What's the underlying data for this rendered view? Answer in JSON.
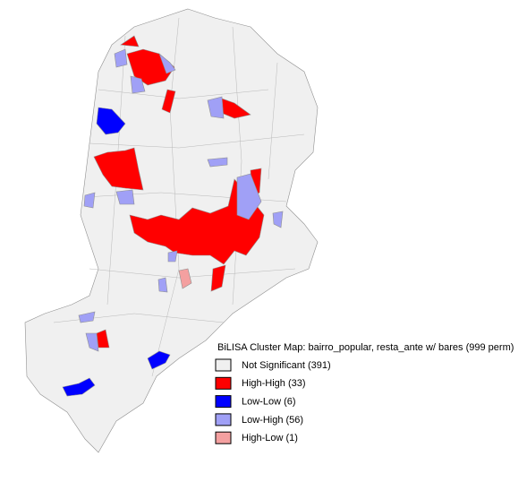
{
  "legend": {
    "title": "BiLISA Cluster Map: bairro_popular, resta_ante w/ bares (999 perm)",
    "items": [
      {
        "label": "Not Significant (391)",
        "color": "#f0f0f0"
      },
      {
        "label": "High-High (33)",
        "color": "#ff0000"
      },
      {
        "label": "Low-Low (6)",
        "color": "#0000ff"
      },
      {
        "label": "Low-High (56)",
        "color": "#a0a0f6"
      },
      {
        "label": "High-Low (1)",
        "color": "#f4a0a0"
      }
    ]
  }
}
